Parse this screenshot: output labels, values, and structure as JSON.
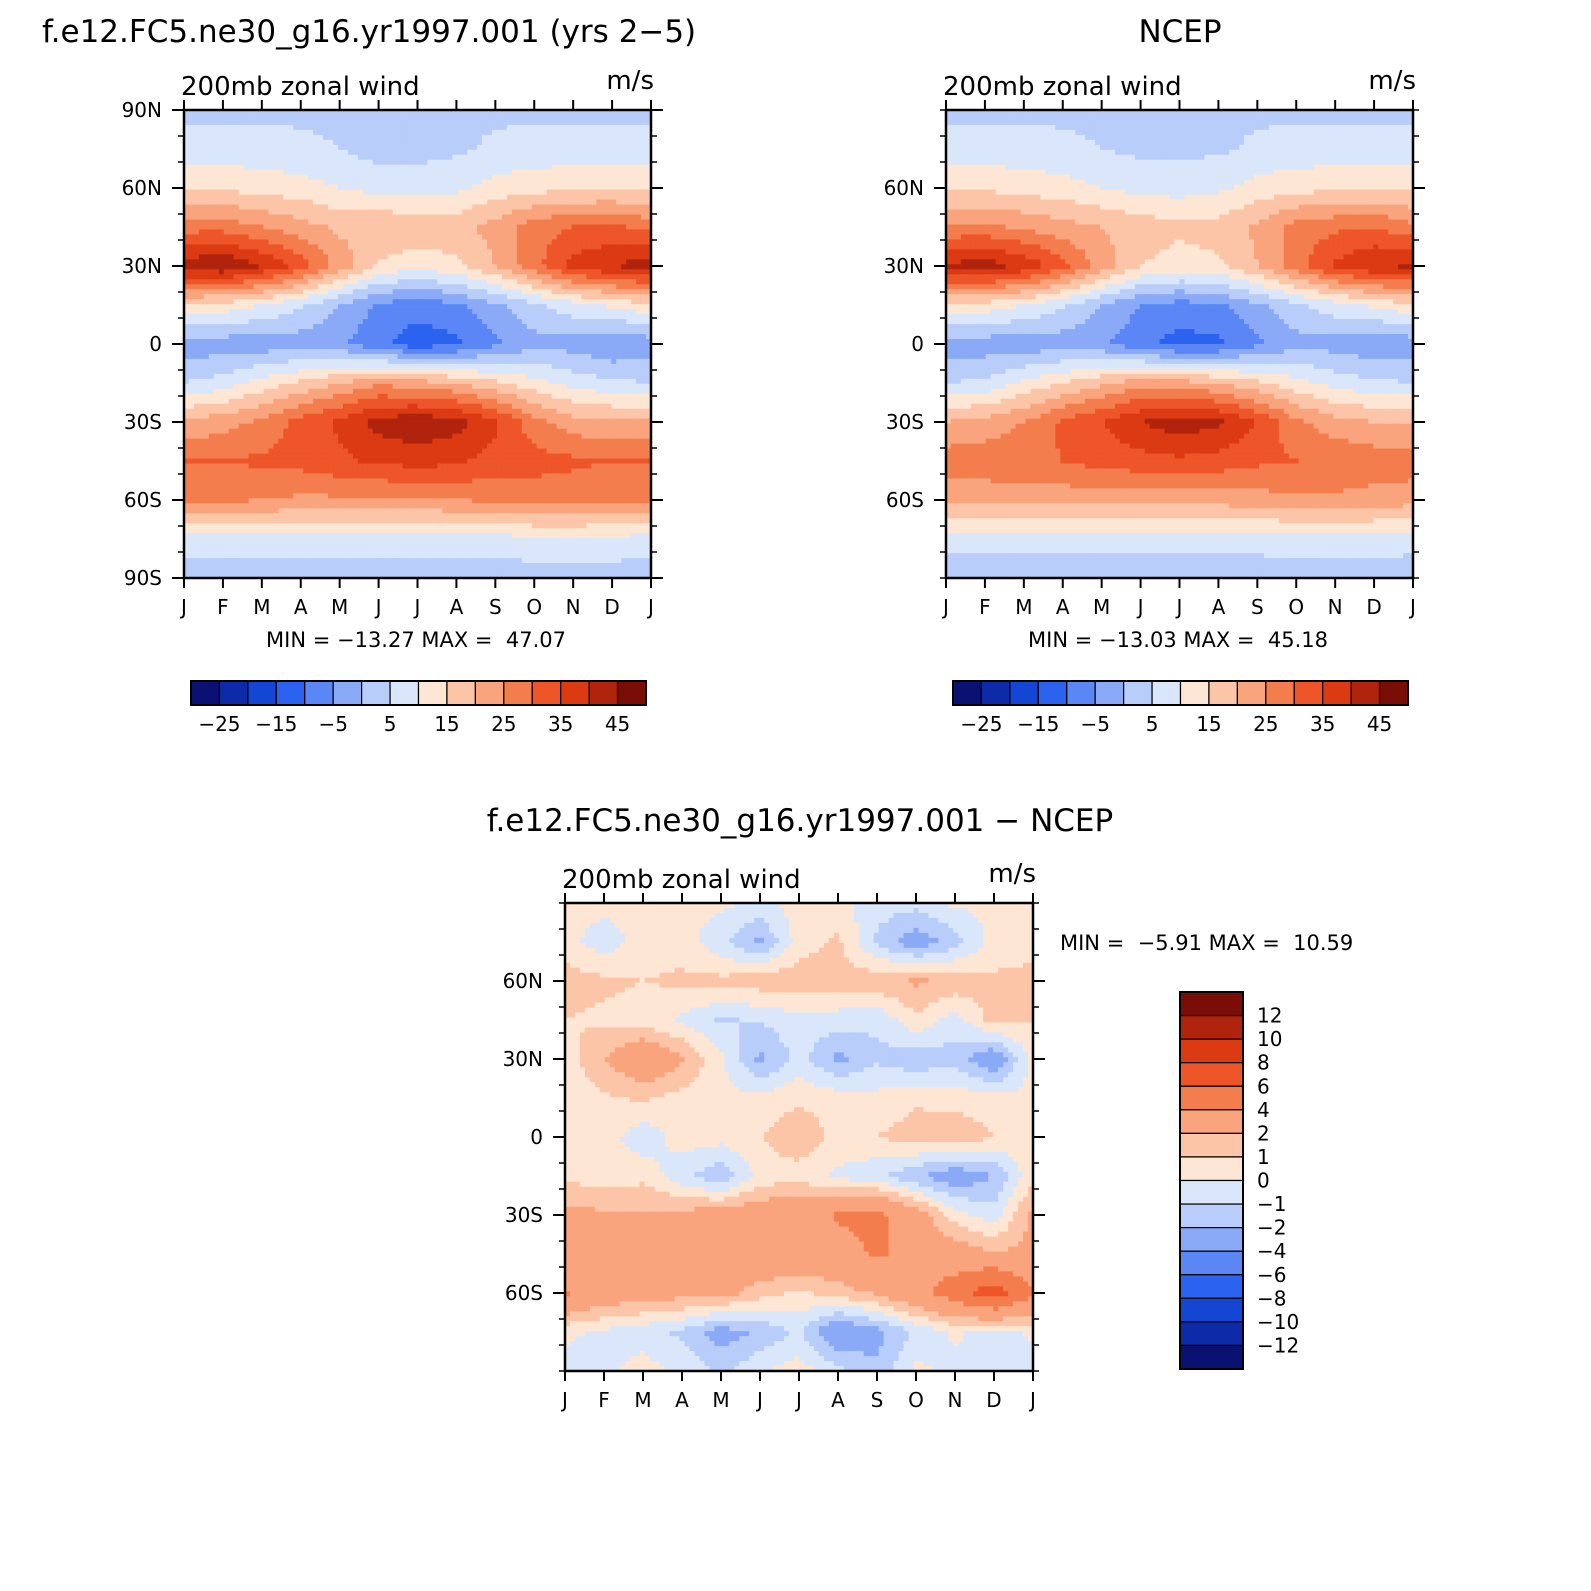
{
  "panels": [
    {
      "id": "model",
      "title": "f.e12.FC5.ne30_g16.yr1997.001 (yrs 2−5)",
      "left_label": "200mb zonal wind",
      "right_label": "m/s",
      "min_max": "MIN = −13.27 MAX =  47.07"
    },
    {
      "id": "obs",
      "title": "NCEP",
      "left_label": "200mb zonal wind",
      "right_label": "m/s",
      "min_max": "MIN = −13.03 MAX =  45.18"
    },
    {
      "id": "diff",
      "title": "f.e12.FC5.ne30_g16.yr1997.001 − NCEP",
      "left_label": "200mb zonal wind",
      "right_label": "m/s",
      "min_max": "MIN =  −5.91 MAX =  10.59"
    }
  ],
  "colorbars": {
    "top": {
      "labels": [
        "−25",
        "−15",
        "−5",
        "5",
        "15",
        "25",
        "35",
        "45"
      ]
    },
    "bottom": {
      "labels": [
        "12",
        "10",
        "8",
        "6",
        "4",
        "2",
        "1",
        "0",
        "−1",
        "−2",
        "−4",
        "−6",
        "−8",
        "−10",
        "−12"
      ]
    }
  },
  "chart_data": [
    {
      "type": "heatmap",
      "title": "f.e12.FC5.ne30_g16.yr1997.001 (yrs 2−5)",
      "subtitle_left": "200mb zonal wind",
      "subtitle_right": "m/s",
      "x_ticks": [
        "J",
        "F",
        "M",
        "A",
        "M",
        "J",
        "J",
        "A",
        "S",
        "O",
        "N",
        "D",
        "J"
      ],
      "y_ticks": [
        "90N",
        "60N",
        "30N",
        "0",
        "30S",
        "60S",
        "90S"
      ],
      "min": -13.27,
      "max": 47.07,
      "levels": [
        -25,
        -20,
        -15,
        -10,
        -5,
        0,
        5,
        10,
        15,
        20,
        25,
        30,
        35,
        40,
        45
      ],
      "colors": [
        "#0a1172",
        "#0d2ba8",
        "#1446d6",
        "#2c62f0",
        "#5a87f5",
        "#8aaaf7",
        "#b8cdf9",
        "#dae7fb",
        "#fde6d4",
        "#fcc5a8",
        "#f9a47c",
        "#f47d4e",
        "#ee5529",
        "#dc3a13",
        "#b0230c",
        "#7a0e06"
      ],
      "approx_grid": {
        "columns": [
          "J",
          "F",
          "M",
          "A",
          "M",
          "J",
          "J",
          "A",
          "S",
          "O",
          "N",
          "D",
          "J"
        ],
        "latitudes": [
          90,
          75,
          60,
          45,
          30,
          15,
          0,
          -15,
          -30,
          -45,
          -60,
          -75,
          -90
        ],
        "values": [
          [
            4,
            4,
            4,
            4,
            4,
            4,
            4,
            4,
            4,
            4,
            4,
            4,
            4
          ],
          [
            7,
            7,
            7,
            6,
            5,
            3,
            3,
            4,
            6,
            7,
            7,
            7,
            7
          ],
          [
            14,
            14,
            13,
            12,
            10,
            8,
            8,
            9,
            12,
            13,
            14,
            14,
            14
          ],
          [
            28,
            28,
            25,
            22,
            19,
            20,
            18,
            18,
            22,
            28,
            30,
            31,
            28
          ],
          [
            43,
            45,
            40,
            33,
            23,
            14,
            12,
            14,
            20,
            28,
            37,
            40,
            43
          ],
          [
            14,
            13,
            10,
            6,
            0,
            -6,
            -8,
            -6,
            -1,
            4,
            8,
            11,
            14
          ],
          [
            -3,
            -3,
            -3,
            -3,
            -4,
            -9,
            -13,
            -11,
            -6,
            -2,
            -2,
            -5,
            -3
          ],
          [
            5,
            7,
            12,
            16,
            20,
            24,
            22,
            20,
            16,
            12,
            8,
            6,
            5
          ],
          [
            21,
            23,
            26,
            32,
            36,
            42,
            44,
            42,
            36,
            27,
            22,
            21,
            21
          ],
          [
            30,
            30,
            31,
            32,
            34,
            36,
            37,
            36,
            33,
            32,
            31,
            30,
            30
          ],
          [
            26,
            26,
            25,
            24,
            24,
            24,
            24,
            25,
            26,
            27,
            27,
            26,
            26
          ],
          [
            8,
            8,
            8,
            8,
            8,
            8,
            8,
            8,
            8,
            9,
            9,
            9,
            8
          ],
          [
            2,
            2,
            2,
            2,
            2,
            2,
            2,
            2,
            2,
            2,
            2,
            2,
            2
          ]
        ]
      }
    },
    {
      "type": "heatmap",
      "title": "NCEP",
      "subtitle_left": "200mb zonal wind",
      "subtitle_right": "m/s",
      "x_ticks": [
        "J",
        "F",
        "M",
        "A",
        "M",
        "J",
        "J",
        "A",
        "S",
        "O",
        "N",
        "D",
        "J"
      ],
      "y_ticks": [
        "60N",
        "30N",
        "0",
        "30S",
        "60S"
      ],
      "min": -13.03,
      "max": 45.18,
      "levels": [
        -25,
        -20,
        -15,
        -10,
        -5,
        0,
        5,
        10,
        15,
        20,
        25,
        30,
        35,
        40,
        45
      ],
      "colors": [
        "#0a1172",
        "#0d2ba8",
        "#1446d6",
        "#2c62f0",
        "#5a87f5",
        "#8aaaf7",
        "#b8cdf9",
        "#dae7fb",
        "#fde6d4",
        "#fcc5a8",
        "#f9a47c",
        "#f47d4e",
        "#ee5529",
        "#dc3a13",
        "#b0230c",
        "#7a0e06"
      ],
      "approx_grid": {
        "columns": [
          "J",
          "F",
          "M",
          "A",
          "M",
          "J",
          "J",
          "A",
          "S",
          "O",
          "N",
          "D",
          "J"
        ],
        "latitudes": [
          90,
          75,
          60,
          45,
          30,
          15,
          0,
          -15,
          -30,
          -45,
          -60,
          -75,
          -90
        ],
        "values": [
          [
            4,
            4,
            4,
            4,
            4,
            4,
            4,
            4,
            4,
            4,
            4,
            4,
            4
          ],
          [
            7,
            7,
            7,
            6,
            5,
            4,
            4,
            4,
            6,
            7,
            7,
            7,
            7
          ],
          [
            14,
            14,
            13,
            12,
            10,
            8,
            8,
            9,
            12,
            13,
            14,
            14,
            14
          ],
          [
            26,
            26,
            24,
            22,
            20,
            18,
            16,
            17,
            21,
            27,
            29,
            30,
            26
          ],
          [
            41,
            43,
            39,
            32,
            23,
            15,
            13,
            14,
            20,
            28,
            36,
            40,
            41
          ],
          [
            14,
            13,
            10,
            6,
            0,
            -5,
            -7,
            -6,
            -1,
            4,
            8,
            11,
            14
          ],
          [
            -3,
            -3,
            -3,
            -3,
            -4,
            -9,
            -12,
            -11,
            -6,
            -2,
            -2,
            -4,
            -3
          ],
          [
            5,
            6,
            11,
            15,
            19,
            23,
            22,
            20,
            16,
            12,
            8,
            6,
            5
          ],
          [
            20,
            22,
            25,
            31,
            35,
            40,
            43,
            41,
            35,
            26,
            22,
            20,
            20
          ],
          [
            28,
            28,
            29,
            30,
            32,
            33,
            34,
            33,
            31,
            30,
            29,
            28,
            28
          ],
          [
            22,
            22,
            22,
            22,
            22,
            22,
            22,
            22,
            23,
            24,
            24,
            23,
            22
          ],
          [
            7,
            7,
            7,
            7,
            7,
            7,
            7,
            7,
            7,
            8,
            8,
            8,
            7
          ],
          [
            2,
            2,
            2,
            2,
            2,
            2,
            2,
            2,
            2,
            2,
            2,
            2,
            2
          ]
        ]
      }
    },
    {
      "type": "heatmap",
      "title": "f.e12.FC5.ne30_g16.yr1997.001 − NCEP",
      "subtitle_left": "200mb zonal wind",
      "subtitle_right": "m/s",
      "x_ticks": [
        "J",
        "F",
        "M",
        "A",
        "M",
        "J",
        "J",
        "A",
        "S",
        "O",
        "N",
        "D",
        "J"
      ],
      "y_ticks": [
        "60N",
        "30N",
        "0",
        "30S",
        "60S"
      ],
      "min": -5.91,
      "max": 10.59,
      "levels": [
        -12,
        -10,
        -8,
        -6,
        -4,
        -2,
        -1,
        0,
        1,
        2,
        4,
        6,
        8,
        10,
        12
      ],
      "colors": [
        "#0a1172",
        "#0d2ba8",
        "#1446d6",
        "#2c62f0",
        "#5a87f5",
        "#8aaaf7",
        "#b8cdf9",
        "#dae7fb",
        "#fde6d4",
        "#fcc5a8",
        "#f9a47c",
        "#f47d4e",
        "#ee5529",
        "#dc3a13",
        "#b0230c",
        "#7a0e06"
      ],
      "approx_grid": {
        "columns": [
          "J",
          "F",
          "M",
          "A",
          "M",
          "J",
          "J",
          "A",
          "S",
          "O",
          "N",
          "D",
          "J"
        ],
        "latitudes": [
          90,
          75,
          60,
          45,
          30,
          15,
          0,
          -15,
          -30,
          -45,
          -60,
          -75,
          -90
        ],
        "values": [
          [
            0.3,
            0.4,
            0.3,
            0.2,
            0.3,
            -0.3,
            0.5,
            0.3,
            -0.5,
            -0.6,
            0.2,
            0.3,
            0.3
          ],
          [
            0.4,
            -0.6,
            0.5,
            0.6,
            -0.8,
            -2.2,
            0.5,
            1.2,
            -1.2,
            -2.8,
            -1.5,
            0.4,
            0.4
          ],
          [
            1.5,
            1.2,
            1.0,
            1.2,
            1.3,
            1.6,
            1.7,
            1.5,
            1.7,
            2.2,
            1.8,
            1.2,
            1.5
          ],
          [
            1.0,
            0.8,
            0.6,
            -0.2,
            -1.1,
            -0.9,
            -0.4,
            -0.5,
            -0.8,
            0.8,
            -0.5,
            1.5,
            1.0
          ],
          [
            0.5,
            2.0,
            3.4,
            2.2,
            0.2,
            -2.3,
            -0.6,
            -2.3,
            -1.2,
            -1.8,
            -1.4,
            -3.2,
            0.5
          ],
          [
            0.2,
            0.8,
            1.2,
            0.6,
            0.3,
            0.2,
            0.8,
            0.5,
            0.3,
            0.8,
            0.6,
            0.4,
            0.2
          ],
          [
            0.3,
            0.5,
            -0.7,
            0.5,
            0.4,
            1.0,
            1.8,
            0.7,
            1.0,
            1.5,
            1.8,
            1.0,
            0.3
          ],
          [
            0.8,
            0.4,
            0.7,
            -0.7,
            -1.8,
            0.4,
            0.5,
            -0.2,
            -0.8,
            -1.8,
            -3.0,
            -2.0,
            0.8
          ],
          [
            2.4,
            2.2,
            2.2,
            2.4,
            2.8,
            3.0,
            3.3,
            4.2,
            4.5,
            2.8,
            0.5,
            -0.6,
            2.4
          ],
          [
            2.2,
            2.5,
            2.7,
            2.8,
            3.2,
            3.4,
            3.4,
            3.3,
            4.2,
            3.4,
            2.8,
            2.2,
            2.2
          ],
          [
            4.2,
            3.0,
            2.8,
            2.5,
            2.6,
            1.4,
            0.8,
            1.5,
            2.2,
            3.5,
            5.0,
            7.2,
            4.2
          ],
          [
            0.2,
            -0.2,
            -0.6,
            -1.2,
            -2.6,
            -1.8,
            -0.8,
            -3.5,
            -2.4,
            -0.8,
            0.2,
            -0.5,
            0.2
          ],
          [
            -0.4,
            -0.3,
            0.5,
            -0.3,
            -1.2,
            -0.2,
            0.5,
            -0.6,
            -1.8,
            0.3,
            -0.4,
            -0.6,
            -0.4
          ]
        ]
      }
    }
  ]
}
